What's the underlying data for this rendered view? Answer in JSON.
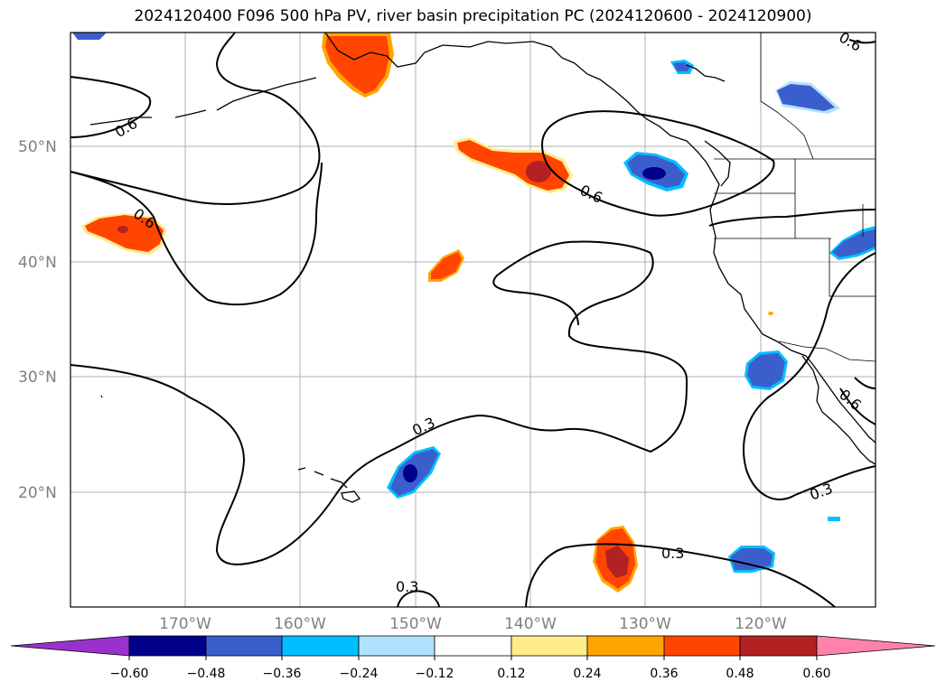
{
  "title": "2024120400 F096 500 hPa PV, river basin precipitation PC (2024120600 - 2024120900)",
  "map": {
    "lat_labels": [
      "20°N",
      "30°N",
      "40°N",
      "50°N"
    ],
    "lon_labels": [
      "170°W",
      "160°W",
      "150°W",
      "140°W",
      "130°W",
      "120°W"
    ],
    "contour_labels": [
      "0.6",
      "0.6",
      "0.6",
      "0.3",
      "0.3",
      "0.3",
      "0.3",
      "0.6",
      "0.6"
    ],
    "contour_color": "#000000",
    "coastline_color": "#000000",
    "gridline_color": "#b0b0b0"
  },
  "colorbar": {
    "ticks": [
      "−0.60",
      "−0.48",
      "−0.36",
      "−0.24",
      "−0.12",
      "0.12",
      "0.24",
      "0.36",
      "0.48",
      "0.60"
    ],
    "colors": [
      "#9932cc",
      "#00008b",
      "#3a5fcd",
      "#00bfff",
      "#b0e2ff",
      "#ffffff",
      "#ffec8b",
      "#ffa500",
      "#ff4500",
      "#b22222",
      "#ff82ab"
    ]
  }
}
